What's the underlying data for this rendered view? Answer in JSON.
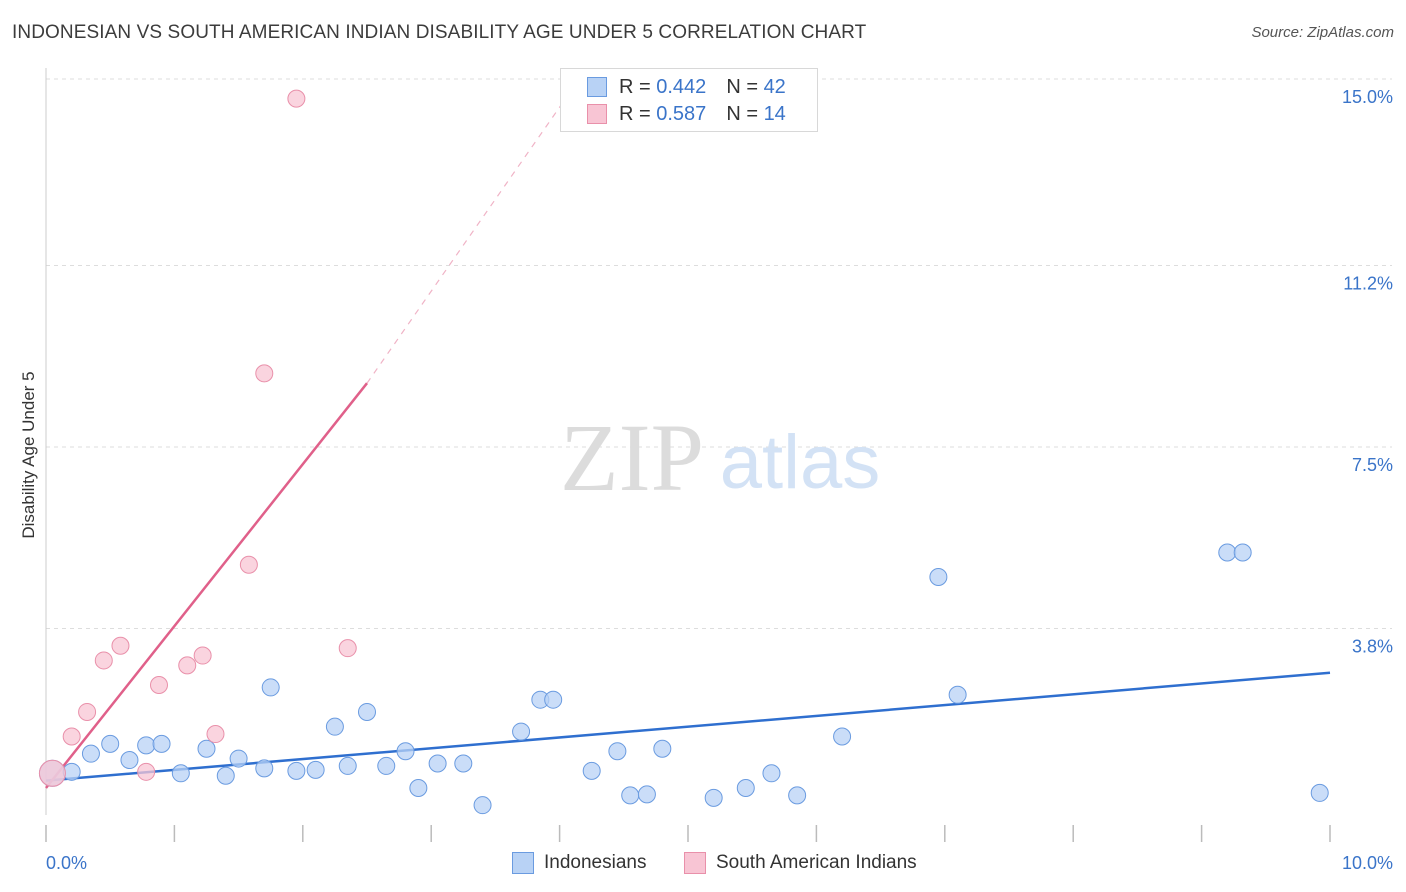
{
  "title": "INDONESIAN VS SOUTH AMERICAN INDIAN DISABILITY AGE UNDER 5 CORRELATION CHART",
  "source": "Source: ZipAtlas.com",
  "watermark": {
    "zip": "ZIP",
    "atlas": "atlas"
  },
  "legend": {
    "r_label": "R =",
    "n_label": "N =",
    "series": [
      {
        "name": "Indonesians",
        "r": "0.442",
        "n": "42",
        "fill": "#b8d2f5",
        "stroke": "#6a9be0",
        "line": "#2f6fcf"
      },
      {
        "name": "South American Indians",
        "r": "0.587",
        "n": "14",
        "fill": "#f8c5d4",
        "stroke": "#e990aa",
        "line": "#e0608a"
      }
    ]
  },
  "chart_data": {
    "type": "scatter",
    "title": "INDONESIAN VS SOUTH AMERICAN INDIAN DISABILITY AGE UNDER 5 CORRELATION CHART",
    "xlabel": "",
    "ylabel": "Disability Age Under 5",
    "xlim": [
      0,
      10
    ],
    "ylim": [
      0,
      15.0
    ],
    "x_tick_labels": [
      "0.0%",
      "10.0%"
    ],
    "y_ticks": [
      3.8,
      7.5,
      11.2,
      15.0
    ],
    "y_tick_labels": [
      "3.8%",
      "7.5%",
      "11.2%",
      "15.0%"
    ],
    "grid": true,
    "legend_position": "top-center",
    "series": [
      {
        "name": "Indonesians",
        "points": [
          [
            0.05,
            0.85
          ],
          [
            0.2,
            0.88
          ],
          [
            0.35,
            1.25
          ],
          [
            0.5,
            1.45
          ],
          [
            0.65,
            1.12
          ],
          [
            0.78,
            1.42
          ],
          [
            0.9,
            1.45
          ],
          [
            1.05,
            0.85
          ],
          [
            1.25,
            1.35
          ],
          [
            1.4,
            0.8
          ],
          [
            1.5,
            1.15
          ],
          [
            1.7,
            0.95
          ],
          [
            1.75,
            2.6
          ],
          [
            1.95,
            0.9
          ],
          [
            2.1,
            0.92
          ],
          [
            2.25,
            1.8
          ],
          [
            2.35,
            1.0
          ],
          [
            2.5,
            2.1
          ],
          [
            2.65,
            1.0
          ],
          [
            2.8,
            1.3
          ],
          [
            2.9,
            0.55
          ],
          [
            3.05,
            1.05
          ],
          [
            3.25,
            1.05
          ],
          [
            3.4,
            0.2
          ],
          [
            3.7,
            1.7
          ],
          [
            3.85,
            2.35
          ],
          [
            3.95,
            2.35
          ],
          [
            4.25,
            0.9
          ],
          [
            4.45,
            1.3
          ],
          [
            4.55,
            0.4
          ],
          [
            4.68,
            0.42
          ],
          [
            4.8,
            1.35
          ],
          [
            5.2,
            0.35
          ],
          [
            5.45,
            0.55
          ],
          [
            5.65,
            0.85
          ],
          [
            5.85,
            0.4
          ],
          [
            6.2,
            1.6
          ],
          [
            6.95,
            4.85
          ],
          [
            7.1,
            2.45
          ],
          [
            9.2,
            5.35
          ],
          [
            9.32,
            5.35
          ],
          [
            9.92,
            0.45
          ]
        ]
      },
      {
        "name": "South American Indians",
        "points": [
          [
            0.05,
            0.85
          ],
          [
            0.2,
            1.6
          ],
          [
            0.32,
            2.1
          ],
          [
            0.45,
            3.15
          ],
          [
            0.58,
            3.45
          ],
          [
            0.78,
            0.88
          ],
          [
            0.88,
            2.65
          ],
          [
            1.1,
            3.05
          ],
          [
            1.22,
            3.25
          ],
          [
            1.32,
            1.65
          ],
          [
            1.58,
            5.1
          ],
          [
            1.7,
            9.0
          ],
          [
            1.95,
            14.6
          ],
          [
            2.35,
            3.4
          ]
        ]
      }
    ],
    "trendlines": [
      {
        "series": "Indonesians",
        "from": [
          0,
          0.7
        ],
        "to": [
          10,
          2.9
        ]
      },
      {
        "series": "South American Indians",
        "from": [
          0,
          0.55
        ],
        "to": [
          2.5,
          8.8
        ],
        "dashed_to": [
          4.1,
          14.8
        ]
      }
    ]
  }
}
